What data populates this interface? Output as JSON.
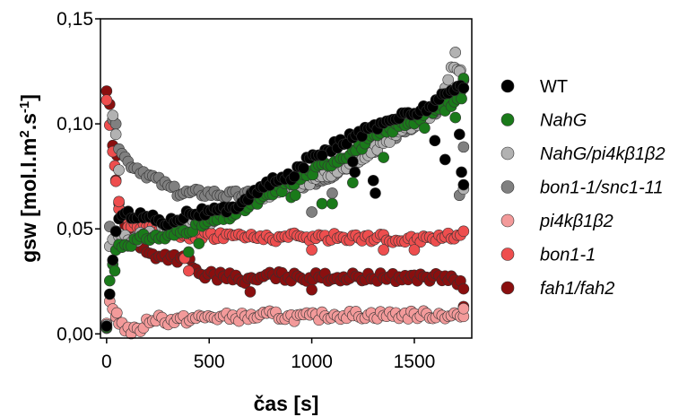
{
  "chart_data": {
    "type": "scatter",
    "title": "",
    "xlabel": "čas [s]",
    "ylabel": "gsw [mol.l.m².s⁻¹]",
    "ylabel_parts": {
      "main": "gsw [mol.l.m",
      "sup1": "2",
      "mid": ".s",
      "sup2": "-1",
      "end": "]"
    },
    "xlim": [
      -30,
      1780
    ],
    "ylim": [
      -0.002,
      0.15
    ],
    "x_ticks": [
      0,
      500,
      1000,
      1500
    ],
    "x_tick_labels": [
      "0",
      "500",
      "1000",
      "1500"
    ],
    "y_ticks": [
      0.0,
      0.05,
      0.1,
      0.15
    ],
    "y_tick_labels": [
      "0,00",
      "0,05",
      "0,10",
      "0,15"
    ],
    "grid": false,
    "legend_position": "right",
    "sampling_interval_s": 15,
    "series": [
      {
        "name": "WT",
        "italic": false,
        "color": "#000000",
        "keyframes": [
          [
            0,
            0.003
          ],
          [
            15,
            0.02
          ],
          [
            30,
            0.035
          ],
          [
            45,
            0.05
          ],
          [
            60,
            0.055
          ],
          [
            120,
            0.057
          ],
          [
            200,
            0.056
          ],
          [
            300,
            0.053
          ],
          [
            400,
            0.058
          ],
          [
            500,
            0.058
          ],
          [
            600,
            0.059
          ],
          [
            700,
            0.066
          ],
          [
            800,
            0.072
          ],
          [
            900,
            0.075
          ],
          [
            1000,
            0.085
          ],
          [
            1100,
            0.089
          ],
          [
            1200,
            0.094
          ],
          [
            1300,
            0.098
          ],
          [
            1400,
            0.103
          ],
          [
            1500,
            0.105
          ],
          [
            1600,
            0.11
          ],
          [
            1700,
            0.117
          ],
          [
            1740,
            0.119
          ]
        ],
        "outliers": [
          [
            1050,
            0.085
          ],
          [
            1200,
            0.082
          ],
          [
            1210,
            0.077
          ],
          [
            1300,
            0.073
          ],
          [
            1310,
            0.067
          ],
          [
            1600,
            0.092
          ],
          [
            1650,
            0.083
          ],
          [
            1720,
            0.095
          ],
          [
            1730,
            0.077
          ],
          [
            1740,
            0.071
          ]
        ]
      },
      {
        "name": "NahG",
        "italic": true,
        "color": "#1a7a1a",
        "keyframes": [
          [
            0,
            0.003
          ],
          [
            15,
            0.025
          ],
          [
            30,
            0.035
          ],
          [
            45,
            0.04
          ],
          [
            60,
            0.042
          ],
          [
            100,
            0.043
          ],
          [
            200,
            0.046
          ],
          [
            300,
            0.046
          ],
          [
            400,
            0.05
          ],
          [
            500,
            0.053
          ],
          [
            600,
            0.056
          ],
          [
            700,
            0.061
          ],
          [
            800,
            0.066
          ],
          [
            900,
            0.072
          ],
          [
            1000,
            0.077
          ],
          [
            1100,
            0.082
          ],
          [
            1200,
            0.087
          ],
          [
            1300,
            0.093
          ],
          [
            1400,
            0.098
          ],
          [
            1500,
            0.102
          ],
          [
            1600,
            0.106
          ],
          [
            1700,
            0.11
          ],
          [
            1740,
            0.12
          ]
        ],
        "outliers": [
          [
            40,
            0.03
          ],
          [
            400,
            0.039
          ],
          [
            450,
            0.043
          ],
          [
            900,
            0.065
          ],
          [
            920,
            0.066
          ],
          [
            1050,
            0.062
          ],
          [
            1100,
            0.062
          ],
          [
            1200,
            0.072
          ],
          [
            1350,
            0.084
          ],
          [
            1550,
            0.098
          ],
          [
            1700,
            0.103
          ],
          [
            1730,
            0.112
          ]
        ]
      },
      {
        "name": "NahG/pi4kβ1β2",
        "italic": true,
        "color": "#b2b2b2",
        "keyframes": [
          [
            0,
            0.005
          ],
          [
            15,
            0.04
          ],
          [
            30,
            0.045
          ],
          [
            45,
            0.048
          ],
          [
            60,
            0.045
          ],
          [
            100,
            0.045
          ],
          [
            200,
            0.047
          ],
          [
            300,
            0.05
          ],
          [
            400,
            0.052
          ],
          [
            500,
            0.054
          ],
          [
            600,
            0.058
          ],
          [
            700,
            0.063
          ],
          [
            800,
            0.067
          ],
          [
            900,
            0.07
          ],
          [
            1000,
            0.073
          ],
          [
            1100,
            0.077
          ],
          [
            1200,
            0.082
          ],
          [
            1300,
            0.088
          ],
          [
            1400,
            0.094
          ],
          [
            1500,
            0.1
          ],
          [
            1600,
            0.105
          ],
          [
            1700,
            0.13
          ],
          [
            1740,
            0.12
          ]
        ],
        "outliers": [
          [
            30,
            0.104
          ],
          [
            45,
            0.095
          ],
          [
            60,
            0.078
          ],
          [
            1700,
            0.134
          ],
          [
            1720,
            0.125
          ],
          [
            1740,
            0.069
          ]
        ]
      },
      {
        "name": "bon1-1/snc1-11",
        "italic": true,
        "color": "#808080",
        "keyframes": [
          [
            0,
            0.004
          ],
          [
            30,
            0.1
          ],
          [
            45,
            0.098
          ],
          [
            60,
            0.09
          ],
          [
            100,
            0.082
          ],
          [
            150,
            0.079
          ],
          [
            200,
            0.076
          ],
          [
            250,
            0.073
          ],
          [
            300,
            0.07
          ],
          [
            350,
            0.067
          ],
          [
            400,
            0.067
          ],
          [
            500,
            0.067
          ],
          [
            600,
            0.066
          ],
          [
            700,
            0.066
          ],
          [
            800,
            0.068
          ],
          [
            900,
            0.07
          ],
          [
            1000,
            0.072
          ],
          [
            1100,
            0.076
          ],
          [
            1200,
            0.082
          ],
          [
            1300,
            0.088
          ],
          [
            1400,
            0.094
          ],
          [
            1500,
            0.1
          ],
          [
            1600,
            0.105
          ],
          [
            1700,
            0.112
          ],
          [
            1740,
            0.12
          ]
        ],
        "outliers": [
          [
            1000,
            0.058
          ],
          [
            1100,
            0.067
          ],
          [
            1720,
            0.066
          ],
          [
            1740,
            0.089
          ]
        ]
      },
      {
        "name": "pi4kβ1β2",
        "italic": true,
        "color": "#f39a9a",
        "keyframes": [
          [
            0,
            0.003
          ],
          [
            15,
            0.015
          ],
          [
            30,
            0.012
          ],
          [
            60,
            0.006
          ],
          [
            100,
            0.002
          ],
          [
            150,
            0.001
          ],
          [
            200,
            0.006
          ],
          [
            250,
            0.008
          ],
          [
            300,
            0.006
          ],
          [
            400,
            0.007
          ],
          [
            500,
            0.008
          ],
          [
            600,
            0.008
          ],
          [
            700,
            0.008
          ],
          [
            800,
            0.009
          ],
          [
            900,
            0.008
          ],
          [
            1000,
            0.008
          ],
          [
            1100,
            0.009
          ],
          [
            1200,
            0.009
          ],
          [
            1300,
            0.009
          ],
          [
            1400,
            0.009
          ],
          [
            1500,
            0.009
          ],
          [
            1600,
            0.009
          ],
          [
            1700,
            0.009
          ],
          [
            1740,
            0.008
          ]
        ],
        "outliers": [
          [
            50,
            0.01
          ],
          [
            1740,
            0.012
          ]
        ]
      },
      {
        "name": "bon1-1",
        "italic": true,
        "color": "#ee4e4e",
        "keyframes": [
          [
            0,
            0.11
          ],
          [
            30,
            0.085
          ],
          [
            60,
            0.06
          ],
          [
            100,
            0.053
          ],
          [
            200,
            0.05
          ],
          [
            300,
            0.048
          ],
          [
            400,
            0.047
          ],
          [
            500,
            0.047
          ],
          [
            600,
            0.047
          ],
          [
            700,
            0.046
          ],
          [
            800,
            0.046
          ],
          [
            900,
            0.046
          ],
          [
            1000,
            0.046
          ],
          [
            1100,
            0.046
          ],
          [
            1200,
            0.046
          ],
          [
            1300,
            0.046
          ],
          [
            1400,
            0.045
          ],
          [
            1500,
            0.045
          ],
          [
            1600,
            0.046
          ],
          [
            1700,
            0.047
          ],
          [
            1740,
            0.049
          ]
        ],
        "outliers": [
          [
            40,
            0.08
          ],
          [
            60,
            0.063
          ],
          [
            380,
            0.036
          ],
          [
            400,
            0.03
          ],
          [
            1000,
            0.04
          ],
          [
            1350,
            0.04
          ],
          [
            1500,
            0.04
          ]
        ]
      },
      {
        "name": "fah1/fah2",
        "italic": true,
        "color": "#8a0f0f",
        "keyframes": [
          [
            0,
            0.115
          ],
          [
            15,
            0.11
          ],
          [
            30,
            0.09
          ],
          [
            45,
            0.072
          ],
          [
            60,
            0.062
          ],
          [
            100,
            0.05
          ],
          [
            150,
            0.043
          ],
          [
            200,
            0.038
          ],
          [
            300,
            0.037
          ],
          [
            350,
            0.036
          ],
          [
            400,
            0.035
          ],
          [
            450,
            0.028
          ],
          [
            500,
            0.028
          ],
          [
            600,
            0.027
          ],
          [
            700,
            0.025
          ],
          [
            800,
            0.028
          ],
          [
            900,
            0.027
          ],
          [
            1000,
            0.027
          ],
          [
            1100,
            0.027
          ],
          [
            1200,
            0.027
          ],
          [
            1300,
            0.027
          ],
          [
            1400,
            0.027
          ],
          [
            1500,
            0.027
          ],
          [
            1600,
            0.027
          ],
          [
            1700,
            0.026
          ],
          [
            1740,
            0.022
          ]
        ],
        "outliers": [
          [
            50,
            0.085
          ],
          [
            700,
            0.02
          ],
          [
            1000,
            0.021
          ],
          [
            1740,
            0.013
          ]
        ]
      }
    ]
  }
}
